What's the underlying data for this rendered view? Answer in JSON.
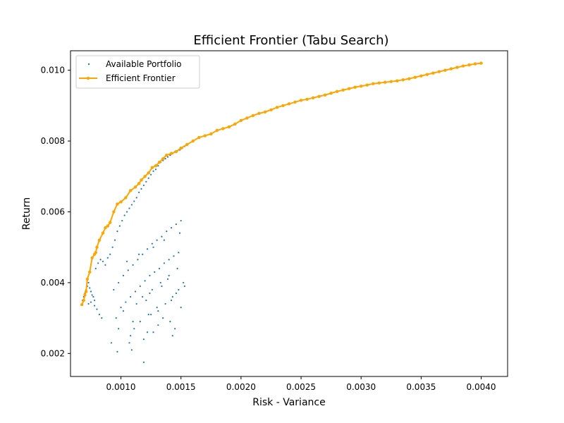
{
  "chart_data": {
    "type": "scatter",
    "title": "Efficient Frontier (Tabu Search)",
    "xlabel": "Risk - Variance",
    "ylabel": "Return",
    "xlim": [
      0.00058,
      0.00422
    ],
    "ylim": [
      0.00135,
      0.01055
    ],
    "xticks": [
      0.001,
      0.0015,
      0.002,
      0.0025,
      0.003,
      0.0035,
      0.004
    ],
    "xtick_labels": [
      "0.0010",
      "0.0015",
      "0.0020",
      "0.0025",
      "0.0030",
      "0.0035",
      "0.0040"
    ],
    "yticks": [
      0.002,
      0.004,
      0.006,
      0.008,
      0.01
    ],
    "ytick_labels": [
      "0.002",
      "0.004",
      "0.006",
      "0.008",
      "0.010"
    ],
    "grid": false,
    "legend_position": "upper-left",
    "colors": {
      "available": "#1f77b4",
      "frontier": "#ffa500"
    },
    "series": [
      {
        "name": "Available Portfolio",
        "kind": "scatter",
        "x": [
          0.00068,
          0.00069,
          0.0007,
          0.00071,
          0.00072,
          0.00073,
          0.00074,
          0.00075,
          0.00076,
          0.00077,
          0.00078,
          0.00073,
          0.00075,
          0.00078,
          0.0008,
          0.00082,
          0.00084,
          0.00079,
          0.00081,
          0.00083,
          0.00085,
          0.00087,
          0.00089,
          0.00091,
          0.00093,
          0.00095,
          0.00097,
          0.00099,
          0.00101,
          0.00103,
          0.00105,
          0.00107,
          0.00109,
          0.00111,
          0.00113,
          0.00115,
          0.00117,
          0.00119,
          0.00121,
          0.00123,
          0.00125,
          0.00127,
          0.00129,
          0.00131,
          0.00133,
          0.00135,
          0.00137,
          0.00139,
          0.00141,
          0.00143,
          0.00145,
          0.00147,
          0.00149,
          0.00151,
          0.00153,
          0.00094,
          0.00098,
          0.00102,
          0.00106,
          0.0011,
          0.00114,
          0.00118,
          0.00122,
          0.00126,
          0.0013,
          0.00134,
          0.00138,
          0.00142,
          0.00146,
          0.0015,
          0.001,
          0.00104,
          0.00108,
          0.00112,
          0.00116,
          0.0012,
          0.00124,
          0.00128,
          0.00132,
          0.00136,
          0.0014,
          0.00144,
          0.00148,
          0.00096,
          0.00111,
          0.00116,
          0.00119,
          0.00127,
          0.00131,
          0.00143,
          0.00145,
          0.00092,
          0.00109,
          0.00125,
          0.00131,
          0.00137,
          0.00143,
          0.00148,
          0.00152,
          0.00121,
          0.00124,
          0.00134,
          0.00139,
          0.00102,
          0.00113,
          0.00118,
          0.00126,
          0.00133,
          0.0014,
          0.00147,
          0.00105,
          0.00115,
          0.00127,
          0.00136,
          0.00149,
          0.00098,
          0.0011,
          0.00123,
          0.0013,
          0.00142,
          0.00146,
          0.00153,
          0.00119,
          0.00108,
          0.00135,
          0.0015,
          0.00097,
          0.00107,
          0.00122,
          0.00141
        ],
        "y": [
          0.0035,
          0.0036,
          0.0037,
          0.0038,
          0.0039,
          0.004,
          0.00385,
          0.00375,
          0.00365,
          0.0036,
          0.0035,
          0.0034,
          0.00345,
          0.00335,
          0.00325,
          0.0031,
          0.003,
          0.0044,
          0.00455,
          0.00465,
          0.0046,
          0.0045,
          0.0047,
          0.0048,
          0.005,
          0.0052,
          0.00545,
          0.0056,
          0.00575,
          0.0059,
          0.006,
          0.0061,
          0.0062,
          0.0063,
          0.0064,
          0.00655,
          0.00665,
          0.00675,
          0.00685,
          0.00695,
          0.00705,
          0.00715,
          0.0072,
          0.0073,
          0.0074,
          0.00745,
          0.0075,
          0.00755,
          0.0076,
          0.00765,
          0.0077,
          0.00772,
          0.00775,
          0.0078,
          0.00785,
          0.0038,
          0.004,
          0.0042,
          0.00435,
          0.0045,
          0.00465,
          0.0048,
          0.00495,
          0.0051,
          0.0052,
          0.0053,
          0.00545,
          0.00555,
          0.00565,
          0.00575,
          0.0033,
          0.00345,
          0.0036,
          0.00375,
          0.0039,
          0.00405,
          0.0042,
          0.0043,
          0.0044,
          0.00455,
          0.00465,
          0.00475,
          0.00485,
          0.003,
          0.0027,
          0.0029,
          0.0024,
          0.0026,
          0.0028,
          0.0025,
          0.0027,
          0.0023,
          0.0021,
          0.0031,
          0.0032,
          0.0034,
          0.0036,
          0.0038,
          0.004,
          0.0035,
          0.0037,
          0.0039,
          0.0041,
          0.0032,
          0.0034,
          0.0036,
          0.0038,
          0.004,
          0.0042,
          0.0044,
          0.0046,
          0.0048,
          0.005,
          0.0052,
          0.0054,
          0.0027,
          0.0029,
          0.0031,
          0.0033,
          0.0035,
          0.0037,
          0.0039,
          0.00175,
          0.0025,
          0.003,
          0.0033,
          0.00205,
          0.0023,
          0.0026,
          0.0029
        ]
      },
      {
        "name": "Efficient Frontier",
        "kind": "line",
        "x": [
          0.000675,
          0.00069,
          0.0007,
          0.00071,
          0.00072,
          0.00074,
          0.00076,
          0.00078,
          0.00079,
          0.0008,
          0.00082,
          0.00085,
          0.00087,
          0.00089,
          0.00091,
          0.00094,
          0.00097,
          0.001,
          0.00104,
          0.00108,
          0.00112,
          0.00115,
          0.00117,
          0.0012,
          0.00123,
          0.00126,
          0.00129,
          0.00132,
          0.00135,
          0.00138,
          0.00142,
          0.00146,
          0.0015,
          0.00155,
          0.0016,
          0.00165,
          0.0017,
          0.00175,
          0.0018,
          0.00185,
          0.0019,
          0.00195,
          0.002,
          0.00205,
          0.0021,
          0.00215,
          0.0022,
          0.00225,
          0.0023,
          0.00235,
          0.0024,
          0.00245,
          0.0025,
          0.00255,
          0.0026,
          0.00265,
          0.0027,
          0.00275,
          0.0028,
          0.00285,
          0.0029,
          0.00295,
          0.003,
          0.00305,
          0.0031,
          0.00315,
          0.0032,
          0.00325,
          0.0033,
          0.00335,
          0.0034,
          0.00345,
          0.0035,
          0.00355,
          0.0036,
          0.00365,
          0.0037,
          0.00375,
          0.0038,
          0.00385,
          0.0039,
          0.00395,
          0.004
        ],
        "y": [
          0.00338,
          0.0035,
          0.00365,
          0.00375,
          0.0041,
          0.0043,
          0.0047,
          0.0048,
          0.00485,
          0.005,
          0.0052,
          0.0054,
          0.00555,
          0.0056,
          0.0057,
          0.006,
          0.00622,
          0.00628,
          0.0064,
          0.0066,
          0.0067,
          0.0068,
          0.0069,
          0.007,
          0.0071,
          0.00725,
          0.0073,
          0.0074,
          0.0075,
          0.0076,
          0.00765,
          0.0077,
          0.0078,
          0.0079,
          0.008,
          0.0081,
          0.00815,
          0.0082,
          0.0083,
          0.00835,
          0.0084,
          0.00848,
          0.00858,
          0.00865,
          0.00872,
          0.00878,
          0.00882,
          0.00888,
          0.00895,
          0.009,
          0.00905,
          0.0091,
          0.00915,
          0.00918,
          0.00922,
          0.00926,
          0.0093,
          0.00935,
          0.0094,
          0.00944,
          0.00948,
          0.00952,
          0.00955,
          0.00958,
          0.00962,
          0.00964,
          0.00966,
          0.00968,
          0.0097,
          0.00973,
          0.00976,
          0.0098,
          0.00984,
          0.00988,
          0.00992,
          0.00996,
          0.01,
          0.01004,
          0.01008,
          0.01012,
          0.01015,
          0.01018,
          0.0102
        ]
      }
    ]
  }
}
